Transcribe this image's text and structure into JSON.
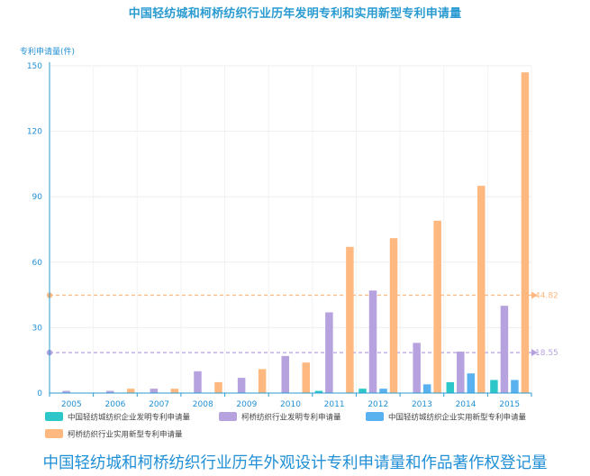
{
  "chart_data": {
    "type": "bar",
    "title": "中国轻纺城和柯桥纺织行业历年发明专利和实用新型专利申请量",
    "ylabel": "专利申请量(件)",
    "xlabel": "",
    "ylim": [
      0,
      150
    ],
    "yticks": [
      0,
      30,
      60,
      90,
      120,
      150
    ],
    "categories": [
      "2005",
      "2006",
      "2007",
      "2008",
      "2009",
      "2010",
      "2011",
      "2012",
      "2013",
      "2014",
      "2015"
    ],
    "series": [
      {
        "name": "中国轻纺城纺织企业发明专利申请量",
        "color": "#2ec7c9",
        "values": [
          0,
          0,
          0,
          0,
          0,
          0,
          1,
          2,
          0,
          5,
          6
        ]
      },
      {
        "name": "柯桥纺织行业发明专利申请量",
        "color": "#b6a2de",
        "values": [
          1,
          1,
          2,
          10,
          7,
          17,
          37,
          47,
          23,
          19,
          40
        ]
      },
      {
        "name": "中国轻纺城纺织企业实用新型专利申请量",
        "color": "#5ab1ef",
        "values": [
          0,
          0,
          0,
          0,
          0,
          0,
          0,
          2,
          4,
          9,
          6
        ]
      },
      {
        "name": "柯桥纺织行业实用新型专利申请量",
        "color": "#ffb980",
        "values": [
          0,
          2,
          2,
          5,
          11,
          14,
          67,
          71,
          79,
          95,
          147
        ]
      }
    ],
    "mark_lines": [
      {
        "value": 44.82,
        "label": "44.82",
        "color": "#ffb980"
      },
      {
        "value": 18.55,
        "label": "18.55",
        "color": "#b6a2de"
      }
    ],
    "grid": true,
    "legend_position": "bottom"
  },
  "bottom_heading": "中国轻纺城和柯桥纺织行业历年外观设计专利申请量和作品著作权登记量"
}
